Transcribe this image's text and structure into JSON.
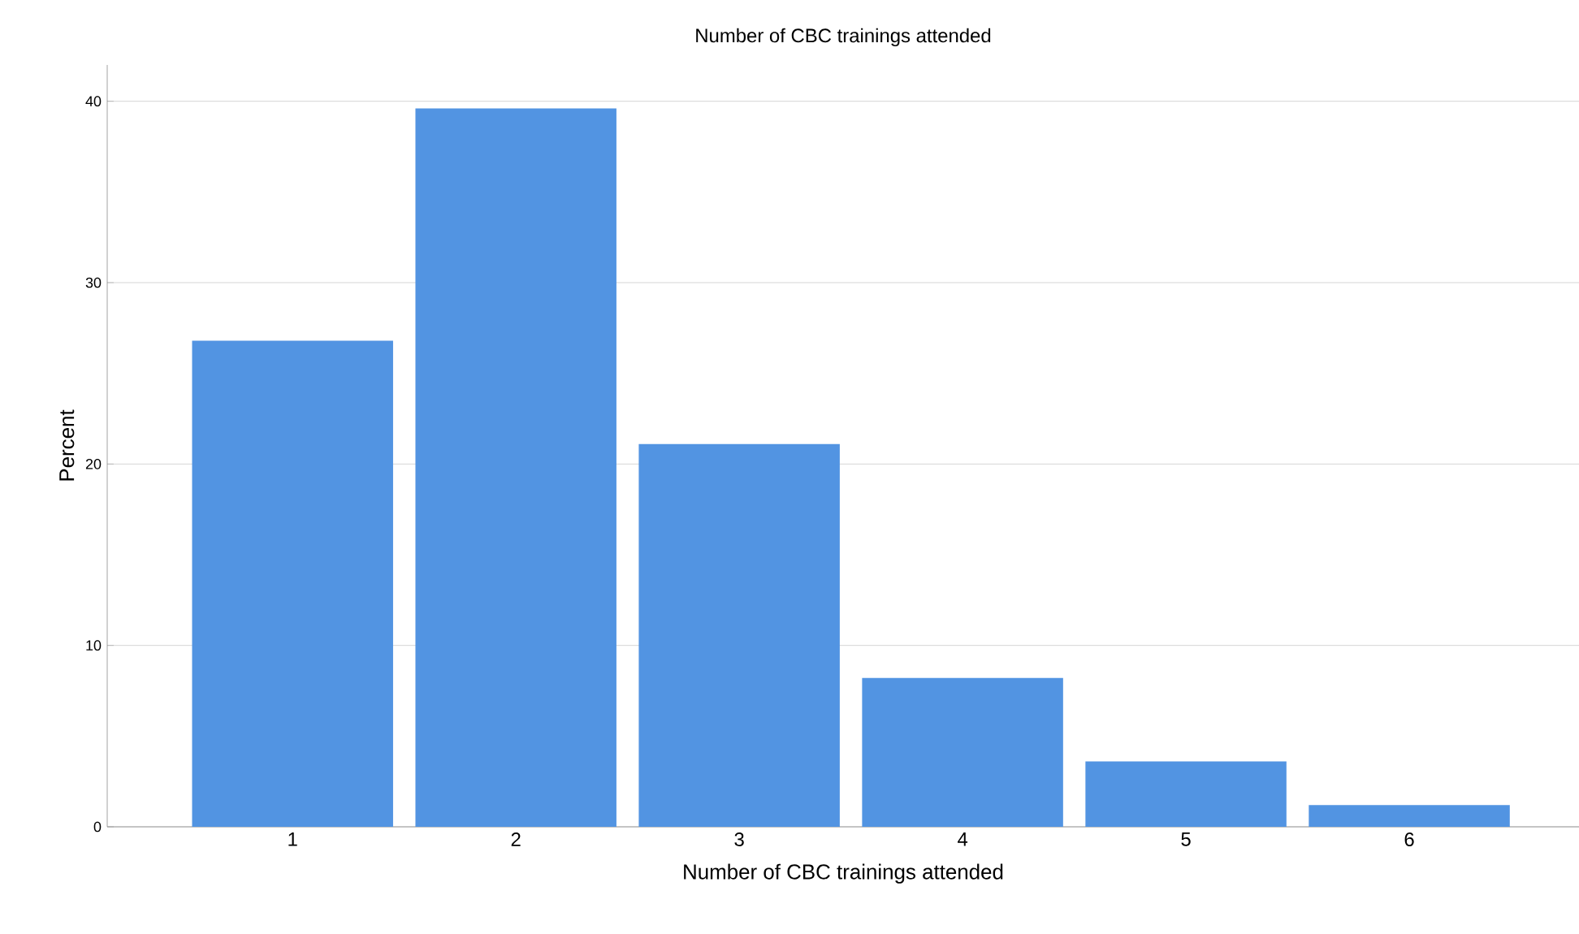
{
  "chart_data": {
    "type": "bar",
    "title": "Number of CBC trainings attended",
    "xlabel": "Number of CBC trainings attended",
    "ylabel": "Percent",
    "categories": [
      "1",
      "2",
      "3",
      "4",
      "5",
      "6"
    ],
    "values": [
      26.8,
      39.6,
      21.1,
      8.2,
      3.6,
      1.2
    ],
    "color": "#5294e2",
    "ylim": [
      0,
      42
    ],
    "yticks": [
      0,
      10,
      20,
      30,
      40
    ],
    "grid": "y"
  }
}
